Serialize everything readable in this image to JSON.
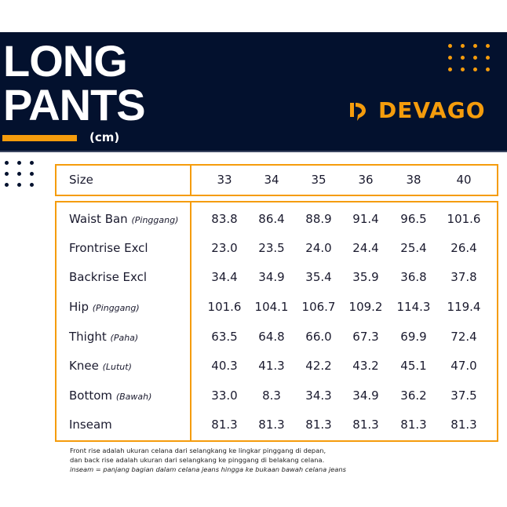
{
  "header": {
    "title_line1": "LONG",
    "title_line2": "PANTS",
    "unit": "(cm)",
    "brand": "DEVAGO"
  },
  "colors": {
    "navy": "#03112e",
    "accent": "#f59c0c"
  },
  "table": {
    "size_label": "Size",
    "sizes": [
      "33",
      "34",
      "35",
      "36",
      "38",
      "40"
    ],
    "rows": [
      {
        "name": "Waist Ban",
        "sub": "(Pinggang)",
        "values": [
          "83.8",
          "86.4",
          "88.9",
          "91.4",
          "96.5",
          "101.6"
        ]
      },
      {
        "name": "Frontrise Excl",
        "sub": "",
        "values": [
          "23.0",
          "23.5",
          "24.0",
          "24.4",
          "25.4",
          "26.4"
        ]
      },
      {
        "name": "Backrise Excl",
        "sub": "",
        "values": [
          "34.4",
          "34.9",
          "35.4",
          "35.9",
          "36.8",
          "37.8"
        ]
      },
      {
        "name": "Hip",
        "sub": "(Pinggang)",
        "values": [
          "101.6",
          "104.1",
          "106.7",
          "109.2",
          "114.3",
          "119.4"
        ]
      },
      {
        "name": "Thight",
        "sub": "(Paha)",
        "values": [
          "63.5",
          "64.8",
          "66.0",
          "67.3",
          "69.9",
          "72.4"
        ]
      },
      {
        "name": "Knee",
        "sub": "(Lutut)",
        "values": [
          "40.3",
          "41.3",
          "42.2",
          "43.2",
          "45.1",
          "47.0"
        ]
      },
      {
        "name": "Bottom",
        "sub": "(Bawah)",
        "values": [
          "33.0",
          "8.3",
          "34.3",
          "34.9",
          "36.2",
          "37.5"
        ]
      },
      {
        "name": "Inseam",
        "sub": "",
        "values": [
          "81.3",
          "81.3",
          "81.3",
          "81.3",
          "81.3",
          "81.3"
        ]
      }
    ]
  },
  "notes": {
    "line1": "Front rise adalah ukuran celana dari selangkang ke lingkar pinggang di depan,",
    "line2": "dan back rise adalah ukuran dari selangkang ke pinggang di belakang celana.",
    "line3": "inseam = panjang bagian dalam celana jeans hingga ke bukaan bawah celana jeans"
  }
}
